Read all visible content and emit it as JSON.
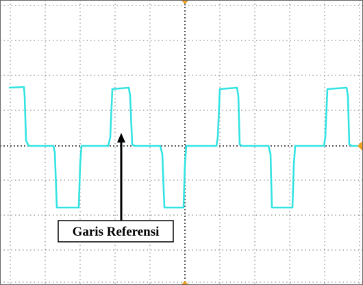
{
  "annotation": {
    "label": "Garis Referensi"
  }
}
